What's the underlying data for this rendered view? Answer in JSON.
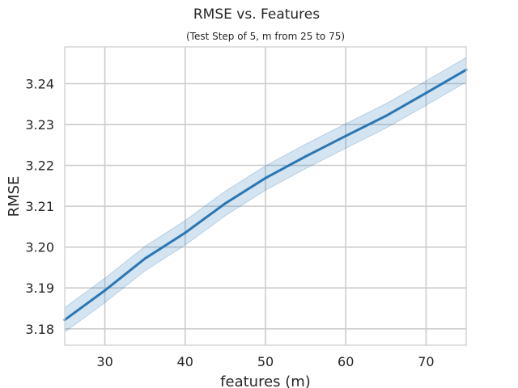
{
  "chart_data": {
    "type": "line",
    "title": "RMSE vs. Features",
    "subtitle": "(Test Step of 5, m from 25 to 75)",
    "xlabel": "features (m)",
    "ylabel": "RMSE",
    "xlim": [
      25,
      75
    ],
    "ylim": [
      3.176,
      3.249
    ],
    "x_ticks": [
      30,
      40,
      50,
      60,
      70
    ],
    "y_ticks": [
      3.18,
      3.19,
      3.2,
      3.21,
      3.22,
      3.23,
      3.24
    ],
    "x_tick_labels": [
      "30",
      "40",
      "50",
      "60",
      "70"
    ],
    "y_tick_labels": [
      "3.18",
      "3.19",
      "3.20",
      "3.21",
      "3.22",
      "3.23",
      "3.24"
    ],
    "grid": true,
    "series": [
      {
        "color": "#2a77b4",
        "band_color": "#2a77b4",
        "x": [
          25,
          30,
          35,
          40,
          45,
          50,
          55,
          60,
          65,
          70,
          75
        ],
        "y": [
          3.1822,
          3.1894,
          3.1972,
          3.2035,
          3.2107,
          3.2169,
          3.2222,
          3.2272,
          3.2321,
          3.2377,
          3.2434
        ],
        "y_lower": [
          3.1792,
          3.1864,
          3.1942,
          3.2005,
          3.2077,
          3.2139,
          3.2192,
          3.2242,
          3.2291,
          3.2347,
          3.2404
        ],
        "y_upper": [
          3.1852,
          3.1924,
          3.2002,
          3.2065,
          3.2137,
          3.2199,
          3.2252,
          3.2302,
          3.2351,
          3.2407,
          3.2464
        ]
      }
    ]
  }
}
